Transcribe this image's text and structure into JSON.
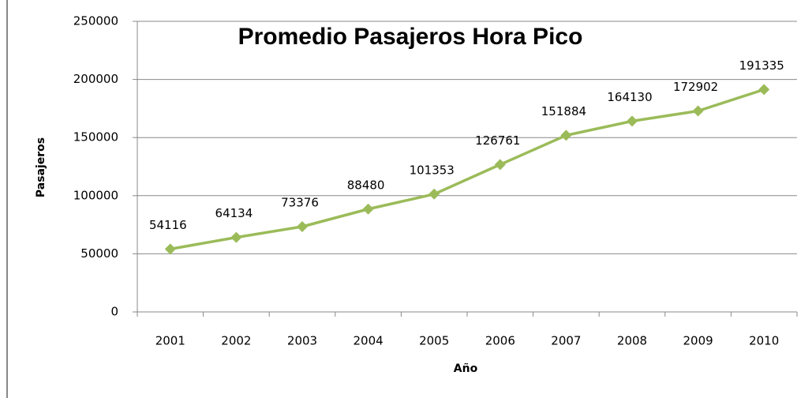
{
  "chart_data": {
    "type": "line",
    "title": "Promedio Pasajeros Hora Pico",
    "x_label": "Año",
    "y_label": "Pasajeros",
    "categories": [
      "2001",
      "2002",
      "2003",
      "2004",
      "2005",
      "2006",
      "2007",
      "2008",
      "2009",
      "2010"
    ],
    "series": [
      {
        "name": "Pasajeros",
        "color": "#9bbb59",
        "values": [
          54116,
          64134,
          73376,
          88480,
          101353,
          126761,
          151884,
          164130,
          172902,
          191335
        ]
      }
    ],
    "ylim": [
      0,
      250000
    ],
    "yticks": [
      0,
      50000,
      100000,
      150000,
      200000,
      250000
    ],
    "grid": true
  }
}
